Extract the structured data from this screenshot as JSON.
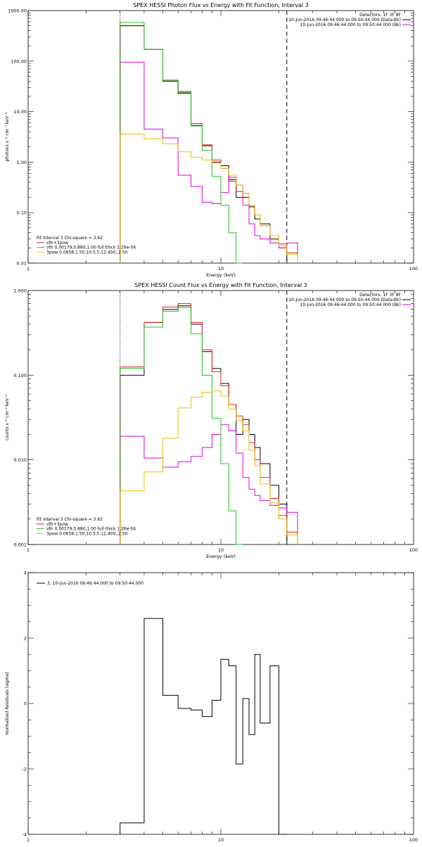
{
  "chart_data": [
    {
      "type": "line",
      "title": "SPEX HESSI Photon Flux vs Energy with Fit Function, Interval 3",
      "xlabel": "Energy (keV)",
      "ylabel": "photons s⁻¹ cm⁻² keV⁻¹",
      "xscale": "log",
      "yscale": "log",
      "xlim": [
        1,
        100
      ],
      "ylim": [
        0.01,
        1000
      ],
      "x_ticks": [
        "1",
        "10",
        "100"
      ],
      "y_ticks": [
        "0.01",
        "0.10",
        "1.00",
        "10.00",
        "100.00",
        "1000.00"
      ],
      "top_right": [
        "Detectors: 1F 3F 8F",
        "10-Jun-2016 09:46:44.000 to 09:50:44.000 (Data-Bk)",
        "10-Jun-2016 09:46:44.000 to 09:50:44.000 (Bk)"
      ],
      "legend_box": [
        "Fit Interval 3   Chi-square = 3.62",
        "vth+3pow",
        "vth 0.00179,0.880,1.00  full thick 1.26e-04",
        "3pow 0.0658,1.50,10.5,5.12,400.,2.50"
      ],
      "vlines": [
        {
          "x": 3.0,
          "style": "dotted"
        },
        {
          "x": 22.0,
          "style": "dashed"
        }
      ],
      "edges": [
        3.0,
        4.0,
        5.0,
        6.0,
        7.0,
        8.0,
        9.0,
        10.0,
        11.0,
        12.0,
        13.0,
        14.0,
        15.0,
        16.0,
        18.0,
        20.0,
        22.0,
        25.0
      ],
      "series": [
        {
          "name": "10-Jun-2016 09:46:44.000 to 09:50:44.000 (Data-Bk)",
          "color": "#000000",
          "values": [
            500,
            170,
            40,
            23,
            5.3,
            2.1,
            1.0,
            0.85,
            0.45,
            0.2,
            0.2,
            0.13,
            0.075,
            0.06,
            0.03,
            0.02,
            null
          ]
        },
        {
          "name": "10-Jun-2016 09:46:44.000 to 09:50:44.000 (Bk)",
          "color": "#e000e0",
          "values": [
            95,
            4.5,
            3.0,
            0.55,
            0.33,
            0.16,
            0.15,
            0.25,
            0.5,
            0.35,
            0.14,
            0.06,
            0.035,
            0.03,
            0.025,
            0.02,
            0.025
          ]
        },
        {
          "name": "vth+3pow",
          "color": "#e02020",
          "values": [
            580,
            170,
            42,
            25,
            5.8,
            2.2,
            1.1,
            0.75,
            0.42,
            0.26,
            0.24,
            0.14,
            0.09,
            0.055,
            0.035,
            0.024,
            0.016,
            0.01
          ]
        },
        {
          "name": "vth 0.00179,0.880,1.00  full thick 1.26e-04",
          "color": "#20c020",
          "values": [
            580,
            170,
            42,
            24,
            5.2,
            1.7,
            0.52,
            0.14,
            0.04,
            0.01
          ]
        },
        {
          "name": "3pow 0.0658,1.50,10.5,5.12,400.,2.50",
          "color": "#e8c000",
          "values": [
            3.6,
            2.9,
            2.3,
            1.6,
            1.25,
            1.1,
            0.95,
            0.75,
            0.55,
            0.35,
            0.24,
            0.14,
            0.09,
            0.055,
            0.035,
            0.022,
            0.015,
            0.01
          ]
        }
      ]
    },
    {
      "type": "line",
      "title": "SPEX HESSI Count Flux vs Energy with Fit Function, Interval 3",
      "xlabel": "Energy (keV)",
      "ylabel": "counts s⁻¹ cm⁻² keV⁻¹",
      "xscale": "log",
      "yscale": "log",
      "xlim": [
        1,
        100
      ],
      "ylim": [
        0.001,
        1
      ],
      "x_ticks": [
        "1",
        "10",
        "100"
      ],
      "y_ticks": [
        "0.001",
        "0.010",
        "0.100",
        "1.000"
      ],
      "top_right": [
        "Detectors: 1F 3F 8F",
        "10-Jun-2016 09:46:44.000 to 09:50:44.000 (Data-Bk)",
        "10-Jun-2016 09:46:44.000 to 09:50:44.000 (Bk)"
      ],
      "legend_box": [
        "Fit Interval 3   Chi-square = 3.62",
        "vth+3pow",
        "vth 0.00179,0.880,1.00  full thick 1.26e-04",
        "3pow 0.0658,1.50,10.5,5.12,400.,2.50"
      ],
      "vlines": [
        {
          "x": 3.0,
          "style": "dotted"
        },
        {
          "x": 22.0,
          "style": "dashed"
        }
      ],
      "edges": [
        3.0,
        4.0,
        5.0,
        6.0,
        7.0,
        8.0,
        9.0,
        10.0,
        11.0,
        12.0,
        13.0,
        14.0,
        15.0,
        16.0,
        18.0,
        20.0,
        22.0,
        25.0
      ],
      "series": [
        {
          "name": "10-Jun-2016 09:46:44.000 to 09:50:44.000 (Data-Bk)",
          "color": "#000000",
          "values": [
            0.1,
            0.42,
            0.6,
            0.66,
            0.4,
            0.19,
            0.12,
            0.08,
            0.045,
            0.02,
            0.03,
            0.02,
            0.014,
            0.009,
            0.005,
            0.003,
            null
          ]
        },
        {
          "name": "10-Jun-2016 09:46:44.000 to 09:50:44.000 (Bk)",
          "color": "#e000e0",
          "values": [
            0.019,
            0.0105,
            0.0082,
            0.0095,
            0.011,
            0.014,
            0.02,
            0.026,
            0.022,
            0.012,
            0.0062,
            0.0045,
            0.0038,
            0.0033,
            0.0029,
            0.0027,
            0.0024
          ]
        },
        {
          "name": "vth+3pow",
          "color": "#e02020",
          "values": [
            0.125,
            0.42,
            0.64,
            0.7,
            0.42,
            0.2,
            0.11,
            0.075,
            0.045,
            0.033,
            0.026,
            0.016,
            0.01,
            0.0062,
            0.0035,
            0.0022,
            0.0014,
            0.001
          ]
        },
        {
          "name": "vth 0.00179,0.880,1.00  full thick 1.26e-04",
          "color": "#20c020",
          "values": [
            0.12,
            0.37,
            0.57,
            0.63,
            0.31,
            0.1,
            0.031,
            0.009,
            0.0025,
            0.001
          ]
        },
        {
          "name": "3pow 0.0658,1.50,10.5,5.12,400.,2.50",
          "color": "#e8c000",
          "values": [
            0.0043,
            0.0072,
            0.018,
            0.041,
            0.055,
            0.063,
            0.065,
            0.057,
            0.04,
            0.029,
            0.022,
            0.013,
            0.0085,
            0.0052,
            0.0031,
            0.002,
            0.0013,
            0.001
          ]
        }
      ]
    },
    {
      "type": "line",
      "title": "",
      "xlabel": "Energy (keV)",
      "ylabel": "Normalized Residuals (sigma)",
      "xscale": "log",
      "yscale": "linear",
      "xlim": [
        1,
        100
      ],
      "ylim": [
        -4,
        4
      ],
      "x_ticks": [
        "1",
        "10",
        "100"
      ],
      "y_ticks": [
        "-4",
        "-2",
        "0",
        "2",
        "4"
      ],
      "legend_entry": "3, 10-Jun-2016 09:46:44.000 to 09:50:44.000",
      "edges": [
        3.0,
        4.0,
        5.0,
        6.0,
        7.0,
        8.0,
        9.0,
        10.0,
        11.0,
        12.0,
        13.0,
        14.0,
        15.0,
        16.0,
        18.0,
        20.0,
        22.0
      ],
      "series": [
        {
          "name": "3, 10-Jun-2016 09:46:44.000 to 09:50:44.000",
          "color": "#000000",
          "values": [
            -3.65,
            2.6,
            0.25,
            -0.15,
            -0.2,
            -0.4,
            0.1,
            1.35,
            1.15,
            -1.85,
            0.15,
            -0.95,
            1.5,
            -0.6,
            1.15,
            -4.0
          ]
        }
      ]
    }
  ]
}
